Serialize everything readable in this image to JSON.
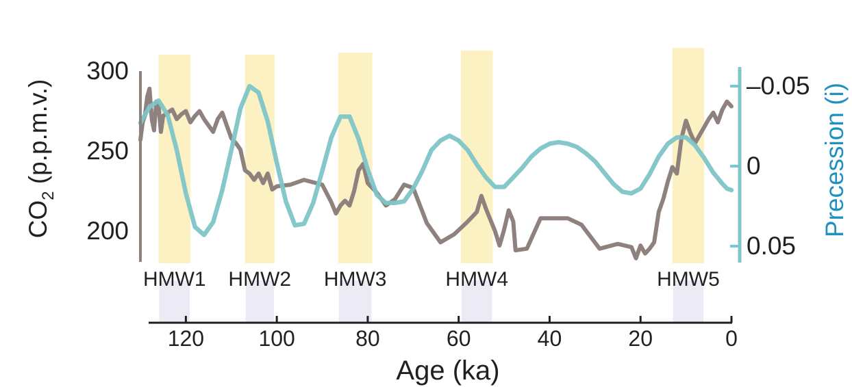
{
  "chart_data": {
    "type": "line",
    "x_axis": {
      "label": "Age (ka)",
      "reversed": true,
      "range": [
        130,
        0
      ],
      "ticks": [
        120,
        100,
        80,
        60,
        40,
        20,
        0
      ]
    },
    "y_left": {
      "label_main": "CO",
      "label_sub": "2",
      "label_rest": " (p.p.m.v.)",
      "range": [
        180,
        300
      ],
      "ticks": [
        200,
        250,
        300
      ]
    },
    "y_right": {
      "label": "Precession (i)",
      "inverted": true,
      "range": [
        0.06,
        -0.06
      ],
      "ticks": [
        -0.05,
        0,
        0.05
      ],
      "tick_labels": [
        "–0.05",
        "0",
        "0.05"
      ]
    },
    "bands": [
      {
        "name": "HMW1",
        "from": 126,
        "to": 119
      },
      {
        "name": "HMW2",
        "from": 107,
        "to": 100.5
      },
      {
        "name": "HMW3",
        "from": 86.5,
        "to": 79
      },
      {
        "name": "HMW4",
        "from": 59.5,
        "to": 52.5
      },
      {
        "name": "HMW5",
        "from": 13,
        "to": 6
      }
    ],
    "series": [
      {
        "key": "co2",
        "axis": "left",
        "color": "#8e817e",
        "points": [
          [
            130,
            257
          ],
          [
            129.5,
            268
          ],
          [
            129,
            272
          ],
          [
            128.5,
            284
          ],
          [
            128,
            289
          ],
          [
            127.5,
            270
          ],
          [
            127,
            263
          ],
          [
            126.5,
            281
          ],
          [
            126,
            278
          ],
          [
            125.5,
            262
          ],
          [
            125,
            272
          ],
          [
            124,
            274
          ],
          [
            123,
            276
          ],
          [
            122,
            270
          ],
          [
            121,
            273
          ],
          [
            120,
            275
          ],
          [
            119,
            268
          ],
          [
            118,
            272
          ],
          [
            117,
            275
          ],
          [
            116,
            270
          ],
          [
            115,
            266
          ],
          [
            114,
            262
          ],
          [
            113,
            270
          ],
          [
            112,
            274
          ],
          [
            111,
            266
          ],
          [
            110,
            258
          ],
          [
            109,
            255
          ],
          [
            108,
            251
          ],
          [
            107,
            238
          ],
          [
            106,
            236
          ],
          [
            105,
            232
          ],
          [
            104,
            236
          ],
          [
            103,
            230
          ],
          [
            102,
            236
          ],
          [
            101,
            226
          ],
          [
            100,
            228
          ],
          [
            97,
            229
          ],
          [
            94,
            232
          ],
          [
            90,
            229
          ],
          [
            88,
            218
          ],
          [
            87,
            211
          ],
          [
            86,
            216
          ],
          [
            85,
            219
          ],
          [
            84,
            216
          ],
          [
            83,
            225
          ],
          [
            82,
            238
          ],
          [
            81,
            242
          ],
          [
            80,
            230
          ],
          [
            78,
            224
          ],
          [
            76,
            216
          ],
          [
            74,
            220
          ],
          [
            72,
            229
          ],
          [
            70,
            227
          ],
          [
            67,
            205
          ],
          [
            64,
            193
          ],
          [
            61,
            198
          ],
          [
            58,
            206
          ],
          [
            56,
            212
          ],
          [
            55,
            222
          ],
          [
            54,
            214
          ],
          [
            52,
            200
          ],
          [
            51,
            191
          ],
          [
            50,
            201
          ],
          [
            49,
            213
          ],
          [
            48,
            206
          ],
          [
            47.5,
            188
          ],
          [
            45,
            189
          ],
          [
            42,
            208
          ],
          [
            36,
            208
          ],
          [
            33,
            204
          ],
          [
            29,
            189
          ],
          [
            25,
            192
          ],
          [
            22,
            190
          ],
          [
            21,
            183
          ],
          [
            20,
            191
          ],
          [
            19,
            186
          ],
          [
            18,
            189
          ],
          [
            17,
            193
          ],
          [
            16,
            212
          ],
          [
            15,
            220
          ],
          [
            14,
            231
          ],
          [
            13,
            240
          ],
          [
            12,
            236
          ],
          [
            11,
            258
          ],
          [
            10,
            269
          ],
          [
            9,
            261
          ],
          [
            8,
            255
          ],
          [
            7,
            260
          ],
          [
            6,
            265
          ],
          [
            5,
            270
          ],
          [
            4,
            274
          ],
          [
            3,
            268
          ],
          [
            2,
            276
          ],
          [
            1,
            281
          ],
          [
            0,
            278
          ]
        ]
      },
      {
        "key": "precession",
        "axis": "right",
        "color": "#80c5c7",
        "points": [
          [
            130,
            -0.027
          ],
          [
            128,
            -0.037
          ],
          [
            126,
            -0.041
          ],
          [
            124,
            -0.032
          ],
          [
            122,
            -0.01
          ],
          [
            120,
            0.017
          ],
          [
            118,
            0.038
          ],
          [
            116,
            0.043
          ],
          [
            114,
            0.035
          ],
          [
            112,
            0.015
          ],
          [
            110,
            -0.01
          ],
          [
            108,
            -0.036
          ],
          [
            106,
            -0.05
          ],
          [
            104,
            -0.046
          ],
          [
            102,
            -0.028
          ],
          [
            100,
            -0.002
          ],
          [
            98,
            0.022
          ],
          [
            96,
            0.037
          ],
          [
            94,
            0.036
          ],
          [
            92,
            0.023
          ],
          [
            90,
            0.003
          ],
          [
            88,
            -0.018
          ],
          [
            86,
            -0.031
          ],
          [
            84,
            -0.031
          ],
          [
            82,
            -0.017
          ],
          [
            80,
            0.002
          ],
          [
            78,
            0.018
          ],
          [
            76,
            0.023
          ],
          [
            74,
            0.023
          ],
          [
            72,
            0.022
          ],
          [
            70,
            0.014
          ],
          [
            68,
            0.003
          ],
          [
            66,
            -0.01
          ],
          [
            64,
            -0.016
          ],
          [
            62,
            -0.019
          ],
          [
            60,
            -0.016
          ],
          [
            58,
            -0.01
          ],
          [
            56,
            -0.001
          ],
          [
            54,
            0.007
          ],
          [
            52,
            0.013
          ],
          [
            50,
            0.013
          ],
          [
            48,
            0.007
          ],
          [
            46,
            0.001
          ],
          [
            44,
            -0.006
          ],
          [
            42,
            -0.011
          ],
          [
            40,
            -0.014
          ],
          [
            38,
            -0.015
          ],
          [
            36,
            -0.014
          ],
          [
            34,
            -0.012
          ],
          [
            32,
            -0.008
          ],
          [
            30,
            -0.003
          ],
          [
            28,
            0.004
          ],
          [
            26,
            0.011
          ],
          [
            24,
            0.016
          ],
          [
            22,
            0.017
          ],
          [
            20,
            0.014
          ],
          [
            18,
            0.005
          ],
          [
            16,
            -0.006
          ],
          [
            14,
            -0.014
          ],
          [
            12,
            -0.018
          ],
          [
            10,
            -0.018
          ],
          [
            8,
            -0.013
          ],
          [
            6,
            -0.005
          ],
          [
            4,
            0.004
          ],
          [
            2,
            0.011
          ],
          [
            1,
            0.014
          ],
          [
            0,
            0.015
          ]
        ]
      }
    ]
  }
}
